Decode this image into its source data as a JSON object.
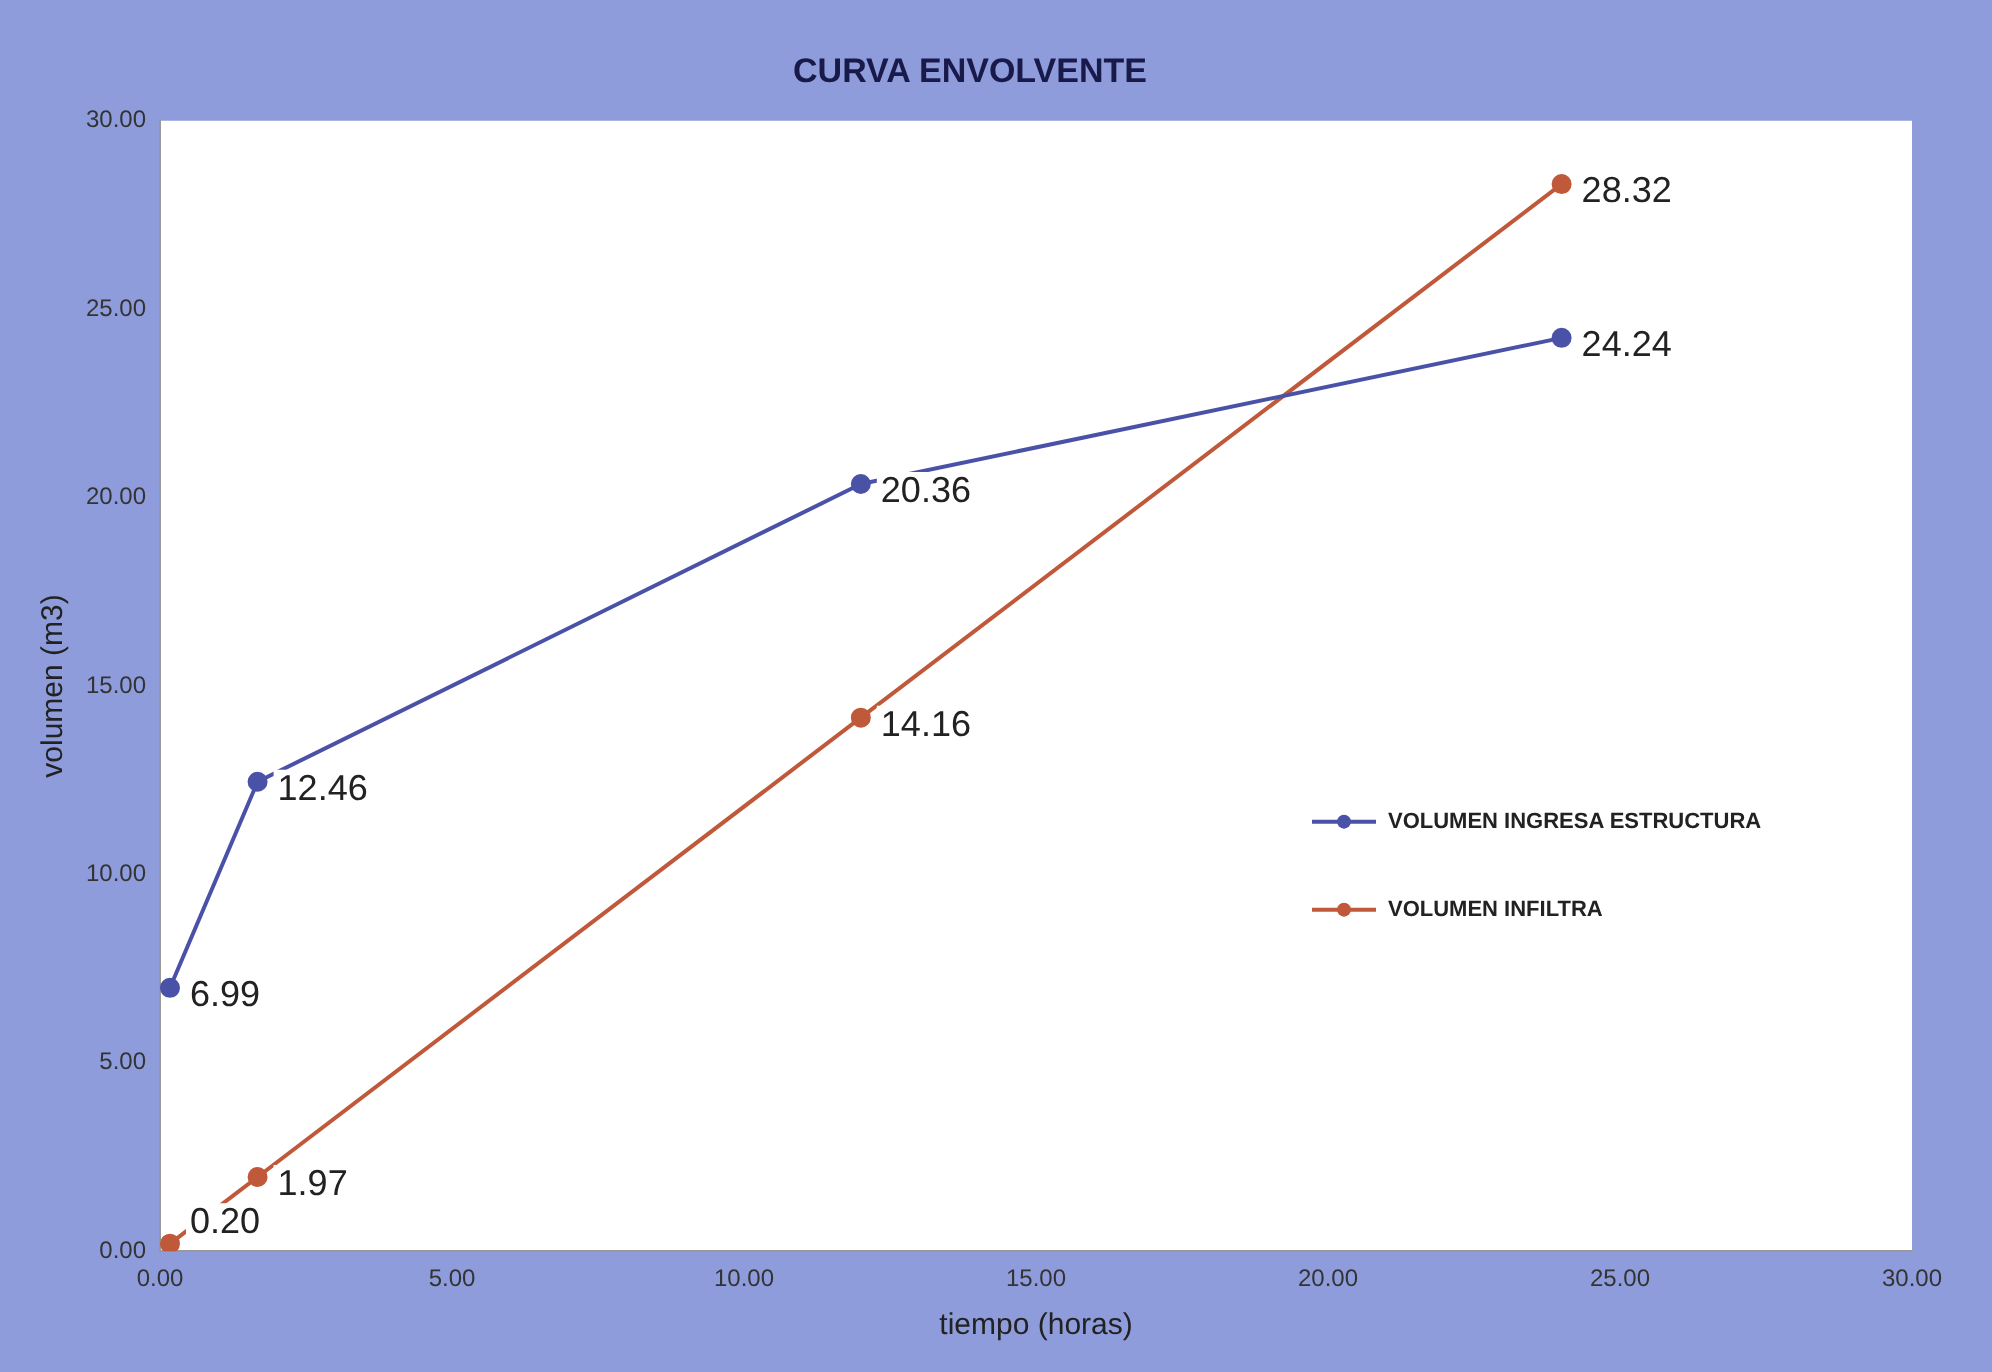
{
  "chart_data": {
    "type": "line",
    "title": "CURVA ENVOLVENTE",
    "xlabel": "tiempo (horas)",
    "ylabel": "volumen (m3)",
    "series": [
      {
        "name": "VOLUMEN INGRESA ESTRUCTURA",
        "color": "#4a52a8",
        "x": [
          0.17,
          1.67,
          12,
          24
        ],
        "values": [
          6.99,
          12.46,
          20.36,
          24.24
        ],
        "value_labels": [
          "6.99",
          "12.46",
          "20.36",
          "24.24"
        ]
      },
      {
        "name": "VOLUMEN INFILTRA",
        "color": "#c0583a",
        "x": [
          0.17,
          1.67,
          12,
          24
        ],
        "values": [
          0.2,
          1.97,
          14.16,
          28.32
        ],
        "value_labels": [
          "0.20",
          "1.97",
          "14.16",
          "28.32"
        ]
      }
    ],
    "xlim": [
      0,
      30
    ],
    "ylim": [
      0,
      30
    ],
    "xticks": [
      {
        "value": 0,
        "label": "0.00"
      },
      {
        "value": 5,
        "label": "5.00"
      },
      {
        "value": 10,
        "label": "10.00"
      },
      {
        "value": 15,
        "label": "15.00"
      },
      {
        "value": 20,
        "label": "20.00"
      },
      {
        "value": 25,
        "label": "25.00"
      },
      {
        "value": 30,
        "label": "30.00"
      }
    ],
    "yticks": [
      {
        "value": 0,
        "label": "0.00"
      },
      {
        "value": 5,
        "label": "5.00"
      },
      {
        "value": 10,
        "label": "10.00"
      },
      {
        "value": 15,
        "label": "15.00"
      },
      {
        "value": 20,
        "label": "20.00"
      },
      {
        "value": 25,
        "label": "25.00"
      },
      {
        "value": 30,
        "label": "30.00"
      }
    ],
    "grid": false,
    "legend": "right",
    "marker": "circle",
    "line_style": "solid"
  }
}
